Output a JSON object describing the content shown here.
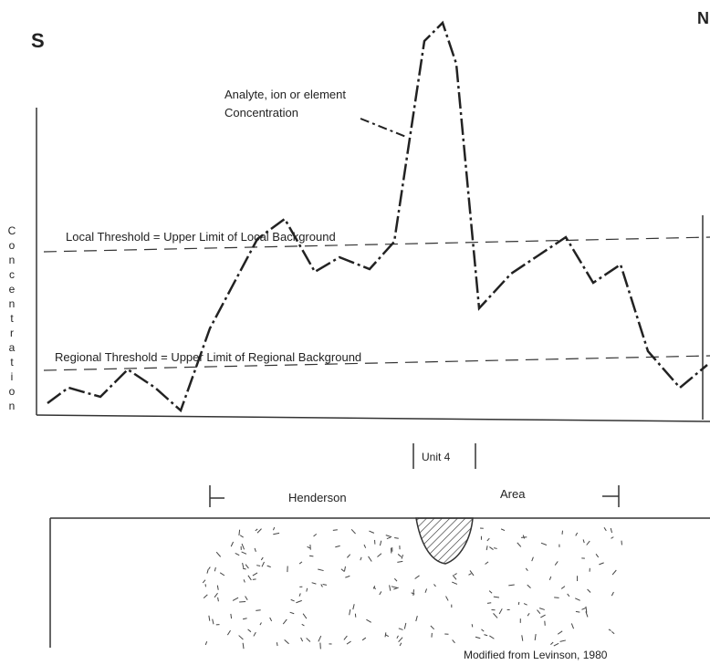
{
  "left_label": "S",
  "right_label": "N",
  "curve_label": {
    "line1": "Analyte, ion or element",
    "line2": "Concentration"
  },
  "y_axis_label": "Concentration",
  "local_threshold": "Local Threshold = Upper Limit of Local Background",
  "regional_threshold": "Regional Threshold = Upper Limit of Regional Background",
  "unit_label": "Unit 4",
  "area_label": {
    "left": "Henderson",
    "right": "Area"
  },
  "credit": "Modified from Levinson, 1980"
}
